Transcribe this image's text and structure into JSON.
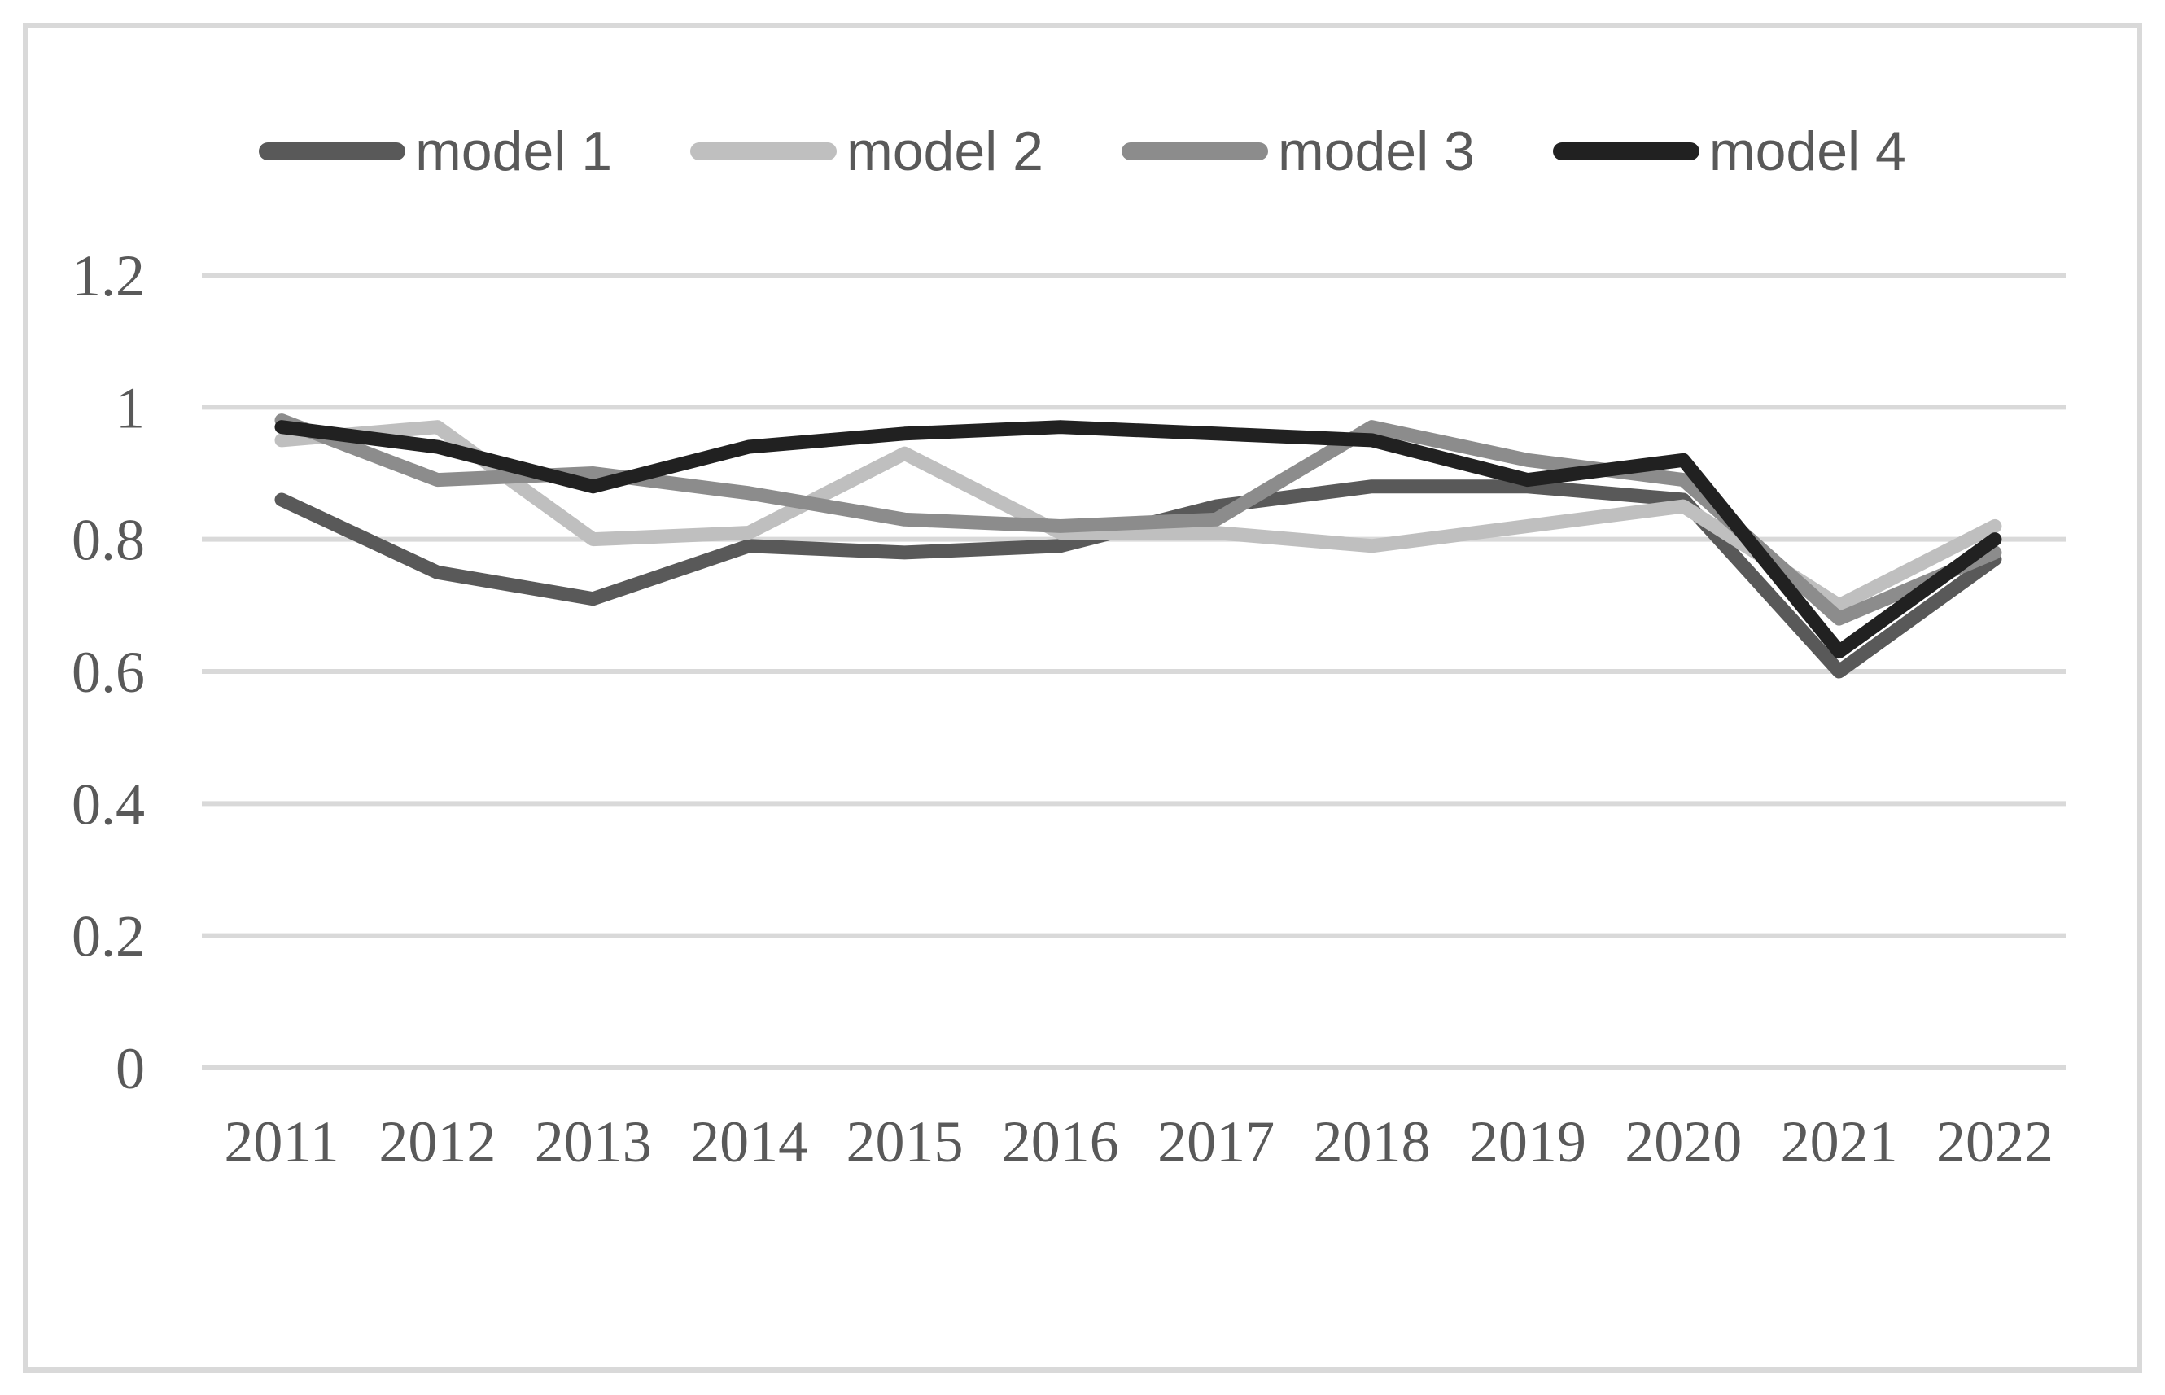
{
  "figure": {
    "background": "#ffffff",
    "border_color": "#d9d9d9",
    "gridline_color": "#d9d9d9",
    "axis_text_color": "#595959",
    "legend_text_color": "#595959"
  },
  "chart_data": {
    "type": "line",
    "title": "",
    "legend_position": "top",
    "grid": true,
    "categories": [
      "2011",
      "2012",
      "2013",
      "2014",
      "2015",
      "2016",
      "2017",
      "2018",
      "2019",
      "2020",
      "2021",
      "2022"
    ],
    "series": [
      {
        "name": "model 1",
        "color": "#595959",
        "values": [
          0.86,
          0.75,
          0.71,
          0.79,
          0.78,
          0.79,
          0.85,
          0.88,
          0.88,
          0.86,
          0.6,
          0.77
        ]
      },
      {
        "name": "model 2",
        "color": "#bfbfbf",
        "values": [
          0.95,
          0.97,
          0.8,
          0.81,
          0.93,
          0.81,
          0.81,
          0.79,
          0.82,
          0.85,
          0.7,
          0.82
        ]
      },
      {
        "name": "model 3",
        "color": "#8c8c8c",
        "values": [
          0.98,
          0.89,
          0.9,
          0.87,
          0.83,
          0.82,
          0.83,
          0.97,
          0.92,
          0.89,
          0.68,
          0.78
        ]
      },
      {
        "name": "model 4",
        "color": "#212121",
        "values": [
          0.97,
          0.94,
          0.88,
          0.94,
          0.96,
          0.97,
          0.96,
          0.95,
          0.89,
          0.92,
          0.63,
          0.8
        ]
      }
    ],
    "y_axis": {
      "tick_values": [
        0,
        0.2,
        0.4,
        0.6,
        0.8,
        1,
        1.2
      ],
      "tick_labels": [
        "0",
        "0.2",
        "0.4",
        "0.6",
        "0.8",
        "1",
        "1.2"
      ],
      "range": [
        0,
        1.2
      ]
    },
    "x_axis": {
      "tick_labels": [
        "2011",
        "2012",
        "2013",
        "2014",
        "2015",
        "2016",
        "2017",
        "2018",
        "2019",
        "2020",
        "2021",
        "2022"
      ]
    }
  }
}
